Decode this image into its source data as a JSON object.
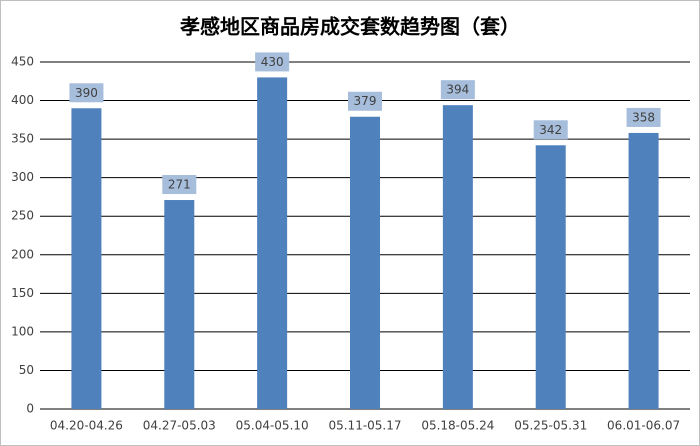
{
  "chart_data": {
    "type": "bar",
    "title": "孝感地区商品房成交套数趋势图（套）",
    "categories": [
      "04.20-04.26",
      "04.27-05.03",
      "05.04-05.10",
      "05.11-05.17",
      "05.18-05.24",
      "05.25-05.31",
      "06.01-06.07"
    ],
    "values": [
      390,
      271,
      430,
      379,
      394,
      342,
      358
    ],
    "color": "#4f81bd",
    "ylim": [
      0,
      450
    ],
    "yticks": [
      0,
      50,
      100,
      150,
      200,
      250,
      300,
      350,
      400,
      450
    ],
    "grid": true
  }
}
